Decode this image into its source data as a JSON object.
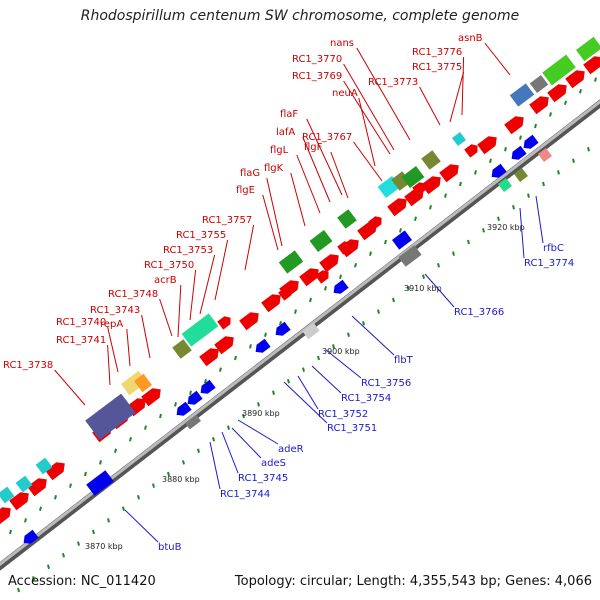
{
  "title": "Rhodospirillum centenum SW chromosome, complete genome",
  "accession": "Accession: NC_011420",
  "summary": "Topology: circular; Length: 4,355,543 bp; Genes: 4,066",
  "colors": {
    "forward": "#ee0000",
    "reverse": "#0000ee",
    "backbone": "#999999",
    "label_top": "#cc0000",
    "label_bottom": "#1a1acc",
    "tick": "#228822"
  },
  "scale_labels": [
    "3870 kbp",
    "3880 kbp",
    "3890 kbp",
    "3900 kbp",
    "3910 kbp",
    "3920 kbp"
  ],
  "top_labels": [
    "RC1_3738",
    "RC1_3741",
    "RC1_3740",
    "repA",
    "RC1_3743",
    "RC1_3748",
    "RC1_3750",
    "acrB",
    "RC1_3753",
    "RC1_3755",
    "RC1_3757",
    "flgE",
    "flaG",
    "flgK",
    "flgL",
    "lafA",
    "flaF",
    "flgF",
    "RC1_3767",
    "neuA",
    "RC1_3769",
    "RC1_3770",
    "nans",
    "RC1_3773",
    "RC1_3775",
    "RC1_3776",
    "asnB"
  ],
  "bottom_labels": [
    "btuB",
    "RC1_3744",
    "RC1_3745",
    "adeS",
    "adeR",
    "RC1_3751",
    "RC1_3752",
    "RC1_3754",
    "RC1_3756",
    "flbT",
    "RC1_3766",
    "RC1_3774",
    "rfbC"
  ]
}
